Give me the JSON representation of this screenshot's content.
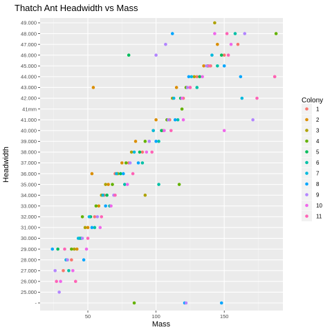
{
  "chart_data": {
    "type": "scatter",
    "title": "Thatch Ant Headwidth vs Mass",
    "xlabel": "Mass",
    "ylabel": "Headwidth",
    "xlim": [
      15,
      193
    ],
    "x_ticks": [
      50,
      100,
      150
    ],
    "y_categories": [
      "-",
      "25.000",
      "26.000",
      "27.000",
      "28.000",
      "29.000",
      "30.000",
      "31.000",
      "32.000",
      "33.000",
      "34.000",
      "35.000",
      "36.000",
      "37.000",
      "38.000",
      "39.000",
      "40.000",
      "41.000",
      "41mm",
      "42.000",
      "43.000",
      "44.000",
      "45.000",
      "46.000",
      "47.000",
      "48.000",
      "49.000"
    ],
    "grid": true,
    "legend": {
      "title": "Colony",
      "placement": "right"
    },
    "series": [
      {
        "name": "1",
        "color": "#F8766D",
        "points": [
          [
            32,
            "27.000"
          ],
          [
            38,
            "28.000"
          ],
          [
            45,
            "30.000"
          ],
          [
            55,
            "32.000"
          ],
          [
            62,
            "34.000"
          ],
          [
            70,
            "36.000"
          ],
          [
            80,
            "37.000"
          ],
          [
            90,
            "38.000"
          ],
          [
            95,
            "39.000"
          ],
          [
            105,
            "40.000"
          ],
          [
            110,
            "41.000"
          ],
          [
            120,
            "42.000"
          ],
          [
            125,
            "43.000"
          ],
          [
            130,
            "44.000"
          ],
          [
            140,
            "45.000"
          ],
          [
            150,
            "46.000"
          ],
          [
            160,
            "47.000"
          ],
          [
            187,
            "44.000"
          ]
        ]
      },
      {
        "name": "2",
        "color": "#DB8E00",
        "points": [
          [
            35,
            "28.000"
          ],
          [
            42,
            "29.000"
          ],
          [
            50,
            "31.000"
          ],
          [
            58,
            "33.000"
          ],
          [
            65,
            "35.000"
          ],
          [
            75,
            "37.000"
          ],
          [
            85,
            "39.000"
          ],
          [
            100,
            "41.000"
          ],
          [
            115,
            "43.000"
          ],
          [
            135,
            "45.000"
          ],
          [
            145,
            "47.000"
          ],
          [
            54,
            "43.000"
          ],
          [
            53,
            "36.000"
          ]
        ]
      },
      {
        "name": "3",
        "color": "#AEA200",
        "points": [
          [
            40,
            "29.000"
          ],
          [
            48,
            "31.000"
          ],
          [
            60,
            "34.000"
          ],
          [
            72,
            "36.000"
          ],
          [
            82,
            "38.000"
          ],
          [
            98,
            "40.000"
          ],
          [
            112,
            "42.000"
          ],
          [
            128,
            "44.000"
          ],
          [
            143,
            "49.000"
          ],
          [
            92,
            "34.000"
          ],
          [
            63,
            "35.000"
          ]
        ]
      },
      {
        "name": "4",
        "color": "#64B200",
        "points": [
          [
            38,
            "29.000"
          ],
          [
            46,
            "32.000"
          ],
          [
            56,
            "33.000"
          ],
          [
            68,
            "35.000"
          ],
          [
            78,
            "37.000"
          ],
          [
            92,
            "39.000"
          ],
          [
            108,
            "41.000"
          ],
          [
            122,
            "43.000"
          ],
          [
            138,
            "45.000"
          ],
          [
            188,
            "48.000"
          ],
          [
            84,
            "-"
          ],
          [
            119,
            "41mm"
          ],
          [
            117,
            "35.000"
          ]
        ]
      },
      {
        "name": "5",
        "color": "#00BD5C",
        "points": [
          [
            28,
            "29.000"
          ],
          [
            44,
            "30.000"
          ],
          [
            52,
            "32.000"
          ],
          [
            64,
            "34.000"
          ],
          [
            74,
            "36.000"
          ],
          [
            88,
            "38.000"
          ],
          [
            104,
            "40.000"
          ],
          [
            118,
            "42.000"
          ],
          [
            132,
            "44.000"
          ],
          [
            148,
            "46.000"
          ],
          [
            80,
            "46.000"
          ]
        ]
      },
      {
        "name": "6",
        "color": "#00C1A7",
        "points": [
          [
            36,
            "27.000"
          ],
          [
            45,
            "30.000"
          ],
          [
            55,
            "31.000"
          ],
          [
            66,
            "33.000"
          ],
          [
            77,
            "35.000"
          ],
          [
            90,
            "37.000"
          ],
          [
            102,
            "39.000"
          ],
          [
            116,
            "41.000"
          ],
          [
            130,
            "43.000"
          ],
          [
            145,
            "45.000"
          ],
          [
            158,
            "48.000"
          ],
          [
            102,
            "35.000"
          ]
        ]
      },
      {
        "name": "7",
        "color": "#00BADE",
        "points": [
          [
            34,
            "28.000"
          ],
          [
            43,
            "30.000"
          ],
          [
            51,
            "32.000"
          ],
          [
            61,
            "34.000"
          ],
          [
            71,
            "36.000"
          ],
          [
            84,
            "38.000"
          ],
          [
            98,
            "40.000"
          ],
          [
            113,
            "42.000"
          ],
          [
            126,
            "44.000"
          ],
          [
            141,
            "46.000"
          ],
          [
            163,
            "42.000"
          ]
        ]
      },
      {
        "name": "8",
        "color": "#00A6FF",
        "points": [
          [
            24,
            "29.000"
          ],
          [
            47,
            "28.000"
          ],
          [
            53,
            "31.000"
          ],
          [
            63,
            "33.000"
          ],
          [
            76,
            "36.000"
          ],
          [
            87,
            "37.000"
          ],
          [
            100,
            "39.000"
          ],
          [
            114,
            "41.000"
          ],
          [
            124,
            "44.000"
          ],
          [
            150,
            "45.000"
          ],
          [
            162,
            "44.000"
          ],
          [
            121,
            "-"
          ],
          [
            148,
            "-"
          ],
          [
            112,
            "48.000"
          ]
        ]
      },
      {
        "name": "9",
        "color": "#B385FF",
        "points": [
          [
            29,
            "25.000"
          ],
          [
            26,
            "27.000"
          ],
          [
            35,
            "28.000"
          ],
          [
            46,
            "30.000"
          ],
          [
            57,
            "32.000"
          ],
          [
            69,
            "34.000"
          ],
          [
            81,
            "37.000"
          ],
          [
            95,
            "39.000"
          ],
          [
            109,
            "41.000"
          ],
          [
            123,
            "43.000"
          ],
          [
            137,
            "45.000"
          ],
          [
            171,
            "41.000"
          ],
          [
            165,
            "48.000"
          ],
          [
            122,
            "-"
          ],
          [
            107,
            "47.000"
          ],
          [
            100,
            "46.000"
          ]
        ]
      },
      {
        "name": "10",
        "color": "#EF67EB",
        "points": [
          [
            30,
            "26.000"
          ],
          [
            39,
            "27.000"
          ],
          [
            49,
            "29.000"
          ],
          [
            59,
            "31.000"
          ],
          [
            67,
            "33.000"
          ],
          [
            79,
            "35.000"
          ],
          [
            93,
            "38.000"
          ],
          [
            106,
            "40.000"
          ],
          [
            119,
            "42.000"
          ],
          [
            134,
            "44.000"
          ],
          [
            150,
            "40.000"
          ],
          [
            155,
            "47.000"
          ],
          [
            143,
            "48.000"
          ],
          [
            120,
            "41.000"
          ]
        ]
      },
      {
        "name": "11",
        "color": "#FF63B6",
        "points": [
          [
            27,
            "26.000"
          ],
          [
            33,
            "29.000"
          ],
          [
            41,
            "26.000"
          ],
          [
            50,
            "30.000"
          ],
          [
            60,
            "32.000"
          ],
          [
            70,
            "34.000"
          ],
          [
            83,
            "36.000"
          ],
          [
            97,
            "38.000"
          ],
          [
            111,
            "40.000"
          ],
          [
            125,
            "43.000"
          ],
          [
            139,
            "45.000"
          ],
          [
            153,
            "46.000"
          ],
          [
            174,
            "42.000"
          ],
          [
            187,
            "44.000"
          ],
          [
            152,
            "48.000"
          ]
        ]
      }
    ]
  }
}
